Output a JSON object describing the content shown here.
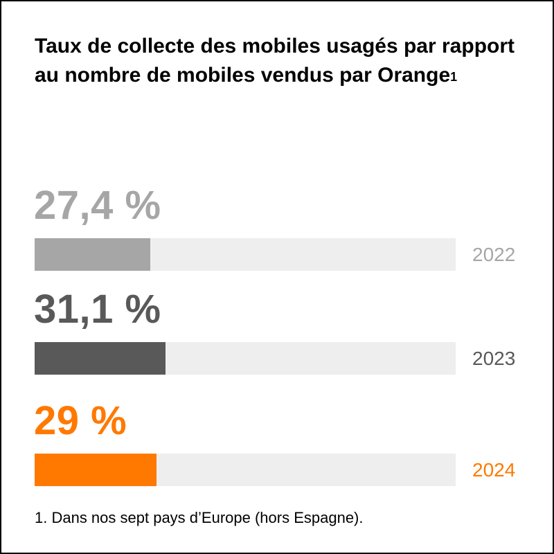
{
  "title": "Taux de collecte des mobiles usagés par rapport au nombre de mobiles vendus par Orange",
  "title_note_marker": "1",
  "footnote": "1. Dans nos sept pays d’Europe (hors Espagne).",
  "colors": {
    "track": "#eeeeee",
    "y2022": "#a6a6a6",
    "y2023": "#595959",
    "y2024": "#ff7900"
  },
  "chart_data": {
    "type": "bar",
    "orientation": "horizontal",
    "title": "Taux de collecte des mobiles usagés par rapport au nombre de mobiles vendus par Orange",
    "categories": [
      "2022",
      "2023",
      "2024"
    ],
    "values": [
      27.4,
      31.1,
      29
    ],
    "unit": "%",
    "xlim": [
      0,
      100
    ],
    "grid": false,
    "labels": [
      "27,4 %",
      "31,1 %",
      "29 %"
    ],
    "bars": [
      {
        "year": "2022",
        "value": 27.4,
        "label": "27,4 %",
        "color": "#a6a6a6"
      },
      {
        "year": "2023",
        "value": 31.1,
        "label": "31,1 %",
        "color": "#595959"
      },
      {
        "year": "2024",
        "value": 29,
        "label": "29 %",
        "color": "#ff7900"
      }
    ]
  }
}
